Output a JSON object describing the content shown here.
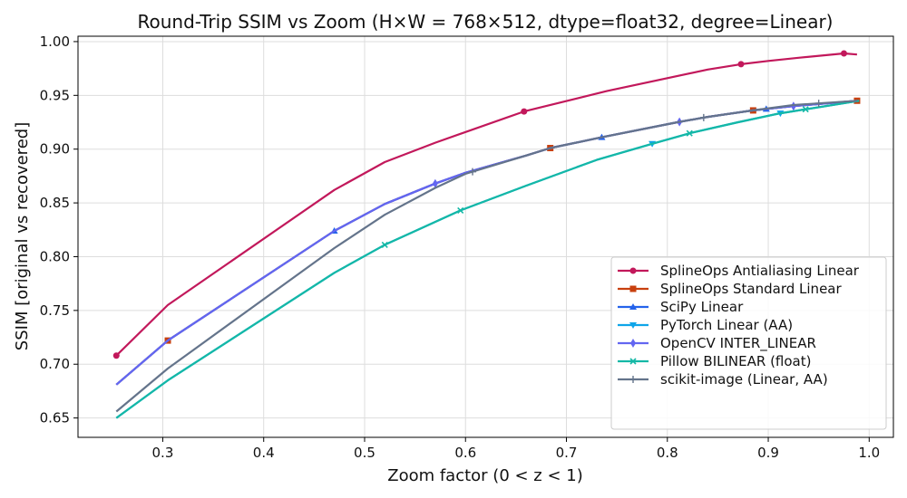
{
  "chart_data": {
    "type": "line",
    "title": "Round-Trip SSIM vs Zoom  (H×W = 768×512, dtype=float32, degree=Linear)",
    "xlabel": "Zoom factor (0 < z < 1)",
    "ylabel": "SSIM  [original vs recovered]",
    "xlim": [
      0.216,
      1.024
    ],
    "ylim": [
      0.632,
      1.005
    ],
    "xticks": [
      "0.3",
      "0.4",
      "0.5",
      "0.6",
      "0.7",
      "0.8",
      "0.9",
      "1.0"
    ],
    "yticks": [
      "0.65",
      "0.70",
      "0.75",
      "0.80",
      "0.85",
      "0.90",
      "0.95",
      "1.00"
    ],
    "grid": true,
    "legend_position": "lower-right",
    "series": [
      {
        "name": "SplineOps Antialiasing Linear",
        "color": "#c2185b",
        "marker": "circle",
        "x": [
          0.254,
          0.305,
          0.47,
          0.52,
          0.57,
          0.658,
          0.74,
          0.84,
          0.873,
          0.9,
          0.93,
          0.975,
          0.988
        ],
        "y": [
          0.708,
          0.755,
          0.862,
          0.888,
          0.906,
          0.935,
          0.954,
          0.974,
          0.979,
          0.982,
          0.985,
          0.989,
          0.988
        ],
        "markers": [
          0.254,
          0.658,
          0.873,
          0.975
        ]
      },
      {
        "name": "SplineOps Standard Linear",
        "color": "#c8400e",
        "marker": "square",
        "x": [
          0.254,
          0.305,
          0.47,
          0.52,
          0.57,
          0.6,
          0.66,
          0.684,
          0.735,
          0.81,
          0.84,
          0.885,
          0.925,
          0.988
        ],
        "y": [
          0.681,
          0.722,
          0.824,
          0.849,
          0.868,
          0.878,
          0.894,
          0.901,
          0.911,
          0.925,
          0.93,
          0.936,
          0.94,
          0.945
        ],
        "markers": [
          0.305,
          0.684,
          0.885,
          0.988
        ]
      },
      {
        "name": "SciPy Linear",
        "color": "#2563eb",
        "marker": "triangle-up",
        "x": [
          0.254,
          0.305,
          0.47,
          0.52,
          0.57,
          0.6,
          0.66,
          0.684,
          0.735,
          0.81,
          0.84,
          0.885,
          0.925,
          0.988
        ],
        "y": [
          0.681,
          0.722,
          0.824,
          0.849,
          0.868,
          0.878,
          0.894,
          0.901,
          0.911,
          0.925,
          0.93,
          0.936,
          0.94,
          0.945
        ],
        "markers": [
          0.47,
          0.735,
          0.898
        ]
      },
      {
        "name": "PyTorch Linear (AA)",
        "color": "#0ea5e9",
        "marker": "triangle-down",
        "x": [
          0.254,
          0.305,
          0.47,
          0.52,
          0.595,
          0.66,
          0.73,
          0.785,
          0.823,
          0.87,
          0.91,
          0.99
        ],
        "y": [
          0.65,
          0.685,
          0.785,
          0.811,
          0.843,
          0.866,
          0.89,
          0.905,
          0.915,
          0.925,
          0.933,
          0.945
        ],
        "markers": [
          0.785,
          0.912
        ]
      },
      {
        "name": "OpenCV INTER_LINEAR",
        "color": "#6366f1",
        "marker": "diamond",
        "x": [
          0.254,
          0.305,
          0.47,
          0.52,
          0.57,
          0.6,
          0.66,
          0.684,
          0.735,
          0.81,
          0.84,
          0.885,
          0.925,
          0.988
        ],
        "y": [
          0.681,
          0.722,
          0.824,
          0.849,
          0.868,
          0.878,
          0.894,
          0.901,
          0.911,
          0.925,
          0.93,
          0.936,
          0.94,
          0.945
        ],
        "markers": [
          0.57,
          0.812,
          0.925
        ]
      },
      {
        "name": "Pillow BILINEAR (float)",
        "color": "#14b8a6",
        "marker": "x",
        "x": [
          0.254,
          0.305,
          0.47,
          0.52,
          0.595,
          0.66,
          0.73,
          0.785,
          0.823,
          0.87,
          0.91,
          0.99
        ],
        "y": [
          0.65,
          0.685,
          0.785,
          0.811,
          0.843,
          0.866,
          0.89,
          0.905,
          0.915,
          0.925,
          0.933,
          0.945
        ],
        "markers": [
          0.52,
          0.595,
          0.822,
          0.937
        ]
      },
      {
        "name": "scikit-image (Linear, AA)",
        "color": "#64748b",
        "marker": "plus",
        "x": [
          0.254,
          0.305,
          0.47,
          0.52,
          0.57,
          0.6,
          0.66,
          0.684,
          0.735,
          0.81,
          0.84,
          0.885,
          0.925,
          0.988
        ],
        "y": [
          0.656,
          0.696,
          0.808,
          0.839,
          0.864,
          0.877,
          0.894,
          0.901,
          0.911,
          0.925,
          0.93,
          0.936,
          0.941,
          0.945
        ],
        "markers": [
          0.607,
          0.836,
          0.95
        ]
      }
    ]
  }
}
